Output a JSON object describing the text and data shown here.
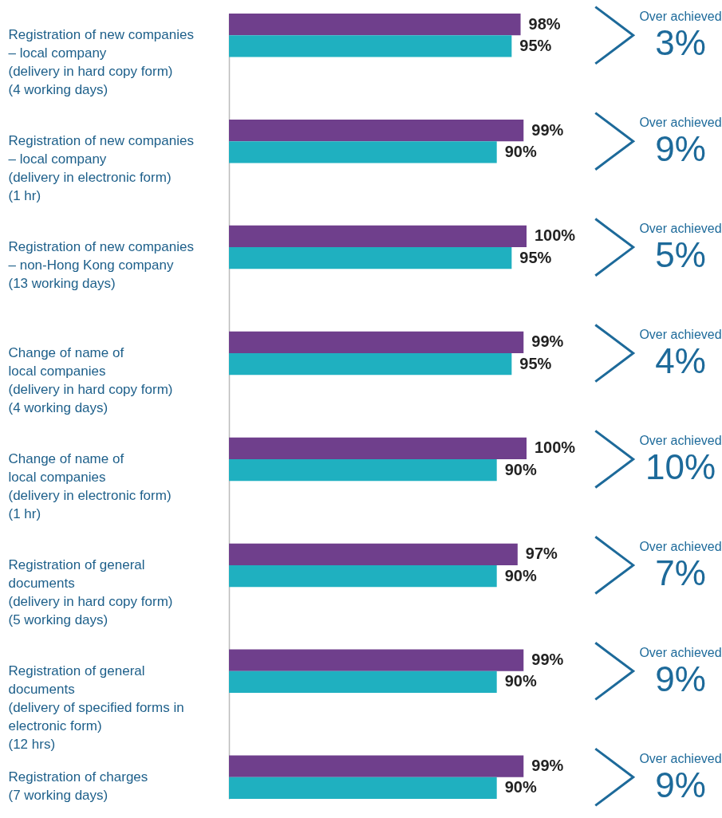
{
  "chart_data": {
    "type": "bar",
    "orientation": "horizontal",
    "categories": [
      "Registration of new companies\n– local company\n(delivery in hard copy form)\n(4 working days)",
      "Registration of new companies\n– local company\n(delivery in electronic form)\n(1 hr)",
      "Registration of new companies\n– non-Hong Kong company\n(13 working days)",
      "Change of name of\nlocal companies\n(delivery in hard copy form)\n(4 working days)",
      "Change of name of\nlocal companies\n(delivery in electronic form)\n(1 hr)",
      "Registration of general\ndocuments\n(delivery in hard copy form)\n(5 working days)",
      "Registration of general\ndocuments\n(delivery of specified forms in\nelectronic form)\n(12 hrs)",
      "Registration of charges\n(7 working days)"
    ],
    "series": [
      {
        "color": "#6f3f8c",
        "values": [
          98,
          99,
          100,
          99,
          100,
          97,
          99,
          99
        ],
        "value_labels": [
          "98%",
          "99%",
          "100%",
          "99%",
          "100%",
          "97%",
          "99%",
          "99%"
        ]
      },
      {
        "color": "#1fb0c0",
        "values": [
          95,
          90,
          95,
          95,
          90,
          90,
          90,
          90
        ],
        "value_labels": [
          "95%",
          "90%",
          "95%",
          "95%",
          "90%",
          "90%",
          "90%",
          "90%"
        ]
      }
    ],
    "xlim": [
      0,
      100
    ],
    "tick_labels": "y",
    "grid": false,
    "annotations": [
      "Over achieved",
      "3%",
      "Over achieved",
      "9%",
      "Over achieved",
      "5%",
      "Over achieved",
      "4%",
      "Over achieved",
      "10%",
      "Over achieved",
      "7%",
      "Over achieved",
      "9%",
      "Over achieved",
      "9%"
    ]
  }
}
